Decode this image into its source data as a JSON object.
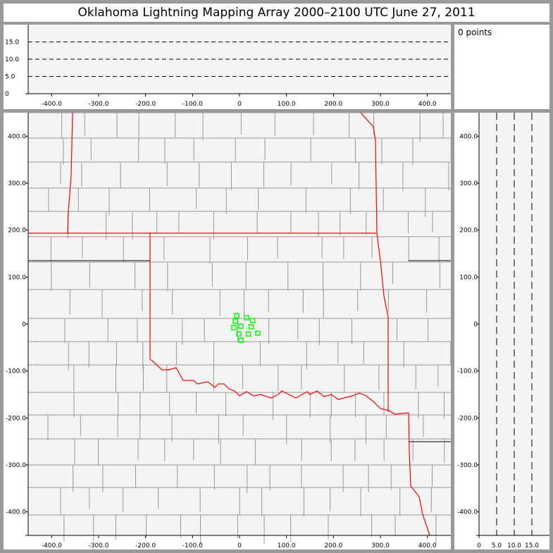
{
  "title": "Oklahoma Lightning Mapping Array   2000–2100 UTC  June 27, 2011",
  "point_count_label": "0 points",
  "colors": {
    "background": "#999999",
    "plot_bg": "#f4f4f4",
    "state_border": "#ff0000",
    "county_border": "#999999",
    "source_marker": "#00ff00"
  },
  "chart_data": [
    {
      "type": "scatter",
      "panel": "altitude-vs-east-west",
      "xlim": [
        -450,
        450
      ],
      "ylim": [
        0,
        20
      ],
      "xticks": [
        "-400.0",
        "-300.0",
        "-200.0",
        "-100.0",
        "0",
        "100.0",
        "200.0",
        "300.0",
        "400.0"
      ],
      "xtick_values": [
        -400,
        -300,
        -200,
        -100,
        0,
        100,
        200,
        300,
        400
      ],
      "yticks": [
        "0",
        "5.0",
        "10.0",
        "15.0"
      ],
      "ytick_values": [
        0,
        5,
        10,
        15
      ],
      "gridlines": [
        5,
        10,
        15
      ],
      "points": []
    },
    {
      "type": "scatter",
      "panel": "plan-view-map",
      "xlim": [
        -450,
        450
      ],
      "ylim": [
        -450,
        450
      ],
      "xticks": [
        "-400.0",
        "-300.0",
        "-200.0",
        "-100.0",
        "0",
        "100.0",
        "200.0",
        "300.0",
        "400.0"
      ],
      "xtick_values": [
        -400,
        -300,
        -200,
        -100,
        0,
        100,
        200,
        300,
        400
      ],
      "yticks": [
        "-400.0",
        "-300.0",
        "-200.0",
        "-100.0",
        "0",
        "100.0",
        "200.0",
        "300.0",
        "400.0"
      ],
      "ytick_values": [
        -400,
        -300,
        -200,
        -100,
        0,
        100,
        200,
        300,
        400
      ],
      "station_markers": [
        [
          -6,
          18
        ],
        [
          15,
          13.5
        ],
        [
          28,
          7.5
        ],
        [
          -9,
          6
        ],
        [
          3,
          -4.5
        ],
        [
          25,
          -6
        ],
        [
          -12,
          -7.5
        ],
        [
          -1.5,
          -21
        ],
        [
          19,
          -21
        ],
        [
          39,
          -19.5
        ],
        [
          3,
          -34.5
        ]
      ],
      "marker_color": "#00ff00"
    },
    {
      "type": "scatter",
      "panel": "north-south-vs-altitude",
      "xlim": [
        0,
        20
      ],
      "ylim": [
        -450,
        450
      ],
      "xticks": [
        "0",
        "5.0",
        "10.0",
        "15.0"
      ],
      "xtick_values": [
        0,
        5,
        10,
        15
      ],
      "yticks": [
        "-400.0",
        "-300.0",
        "-200.0",
        "-100.0",
        "0",
        "100.0",
        "200.0",
        "300.0",
        "400.0"
      ],
      "ytick_values": [
        -400,
        -300,
        -200,
        -100,
        0,
        100,
        200,
        300,
        400
      ],
      "gridlines": [
        5,
        10,
        15
      ],
      "points": []
    }
  ]
}
